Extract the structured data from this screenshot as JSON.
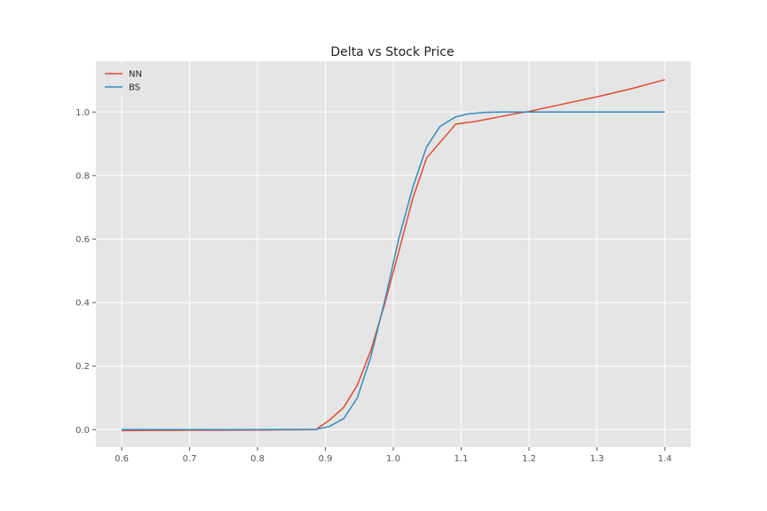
{
  "chart_data": {
    "type": "line",
    "title": "Delta vs Stock Price",
    "xlabel": "",
    "ylabel": "",
    "xlim": [
      0.562,
      1.438
    ],
    "ylim": [
      -0.055,
      1.16
    ],
    "xticks": [
      0.6,
      0.7,
      0.8,
      0.9,
      1.0,
      1.1,
      1.2,
      1.3,
      1.4
    ],
    "xtick_labels": [
      "0.6",
      "0.7",
      "0.8",
      "0.9",
      "1.0",
      "1.1",
      "1.2",
      "1.3",
      "1.4"
    ],
    "yticks": [
      0.0,
      0.2,
      0.4,
      0.6,
      0.8,
      1.0
    ],
    "ytick_labels": [
      "0.0",
      "0.2",
      "0.4",
      "0.6",
      "0.8",
      "1.0"
    ],
    "grid": true,
    "legend_position": "top-left",
    "background_color": "#e5e5e5",
    "series": [
      {
        "name": "NN",
        "color": "#e24a33",
        "x": [
          0.6,
          0.7,
          0.8,
          0.886,
          0.906,
          0.927,
          0.947,
          0.967,
          0.988,
          1.008,
          1.029,
          1.049,
          1.069,
          1.092,
          1.12,
          1.15,
          1.18,
          1.2,
          1.25,
          1.3,
          1.35,
          1.4
        ],
        "y": [
          -0.003,
          -0.002,
          -0.001,
          0.0,
          0.03,
          0.07,
          0.14,
          0.25,
          0.4,
          0.56,
          0.73,
          0.855,
          0.905,
          0.962,
          0.97,
          0.982,
          0.995,
          1.002,
          1.025,
          1.048,
          1.073,
          1.102
        ]
      },
      {
        "name": "BS",
        "color": "#348abd",
        "x": [
          0.6,
          0.7,
          0.8,
          0.886,
          0.906,
          0.927,
          0.947,
          0.967,
          0.988,
          1.008,
          1.029,
          1.049,
          1.069,
          1.092,
          1.112,
          1.135,
          1.16,
          1.2,
          1.3,
          1.4
        ],
        "y": [
          0.0,
          0.0,
          0.0,
          0.001,
          0.01,
          0.035,
          0.1,
          0.23,
          0.41,
          0.6,
          0.765,
          0.89,
          0.955,
          0.985,
          0.995,
          0.999,
          1.0,
          1.0,
          1.0,
          1.0
        ]
      }
    ]
  }
}
